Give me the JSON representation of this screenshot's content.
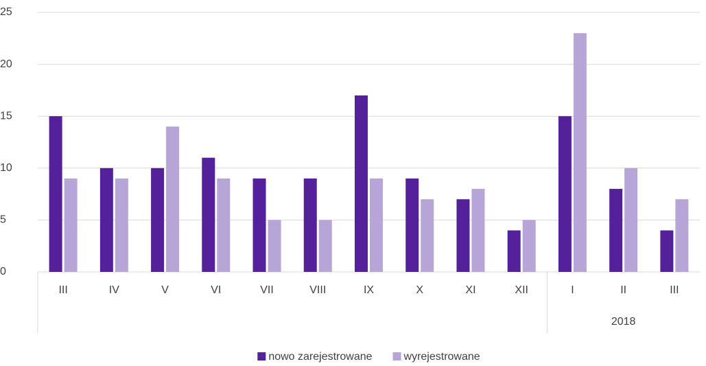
{
  "chart_data": {
    "type": "bar",
    "categories": [
      "III",
      "IV",
      "V",
      "VI",
      "VII",
      "VIII",
      "IX",
      "X",
      "XI",
      "XII",
      "I",
      "II",
      "III"
    ],
    "category_group": [
      null,
      null,
      null,
      null,
      null,
      null,
      null,
      null,
      null,
      null,
      "2018",
      "2018",
      "2018"
    ],
    "series": [
      {
        "name": "nowo zarejestrowane",
        "color": "#55219a",
        "values": [
          15,
          10,
          10,
          11,
          9,
          9,
          17,
          9,
          7,
          4,
          15,
          8,
          4
        ]
      },
      {
        "name": "wyrejestrowane",
        "color": "#b8a5d7",
        "values": [
          9,
          9,
          14,
          9,
          5,
          5,
          9,
          7,
          8,
          5,
          23,
          10,
          7
        ]
      }
    ],
    "ylim": [
      0,
      25
    ],
    "yticks": [
      0,
      5,
      10,
      15,
      20,
      25
    ],
    "grid": true,
    "legend": "bottom"
  }
}
